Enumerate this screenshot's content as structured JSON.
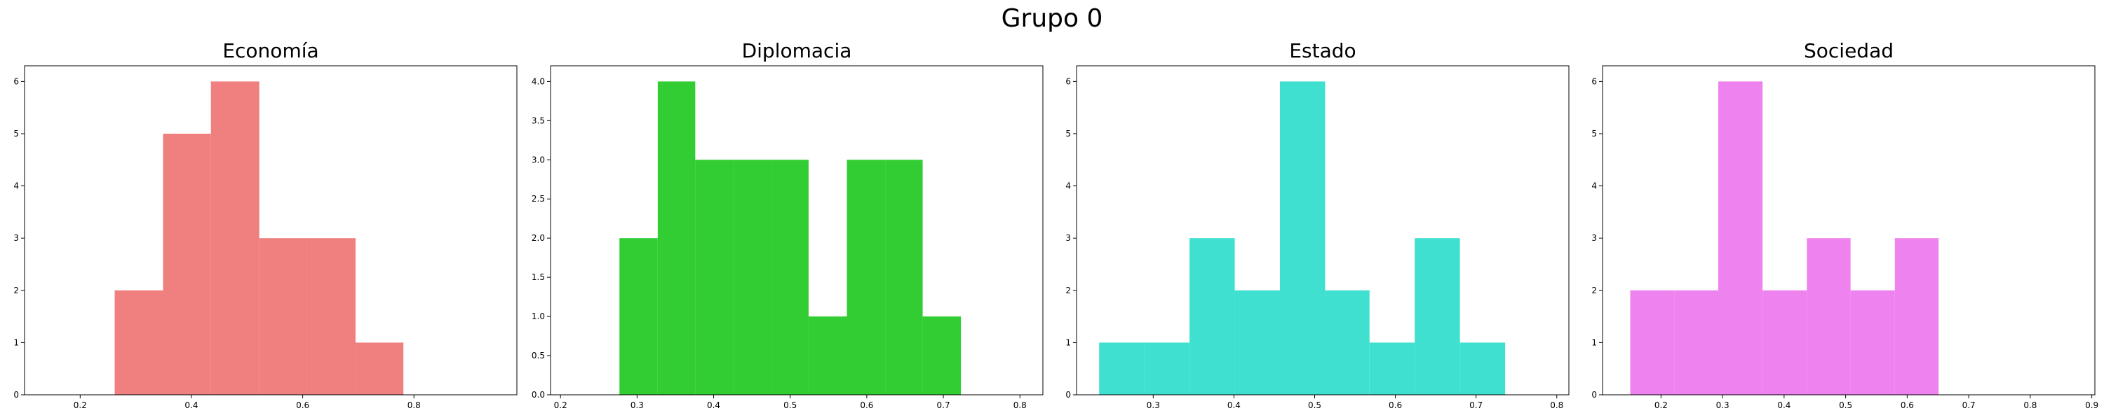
{
  "figure": {
    "title": "Grupo 0"
  },
  "chart_data": [
    {
      "type": "bar",
      "title": "Economía",
      "color": "#f08080",
      "xlim": [
        0.1,
        0.985
      ],
      "ylim": [
        0,
        6.3
      ],
      "xticks": [
        "0.2",
        "0.4",
        "0.6",
        "0.8"
      ],
      "xtick_values": [
        0.2,
        0.4,
        0.6,
        0.8
      ],
      "yticks": [
        "0",
        "1",
        "2",
        "3",
        "4",
        "5",
        "6"
      ],
      "ytick_values": [
        0,
        1,
        2,
        3,
        4,
        5,
        6
      ],
      "bins": [
        {
          "x0": 0.262,
          "x1": 0.349,
          "value": 2
        },
        {
          "x0": 0.349,
          "x1": 0.435,
          "value": 5
        },
        {
          "x0": 0.435,
          "x1": 0.522,
          "value": 6
        },
        {
          "x0": 0.522,
          "x1": 0.608,
          "value": 3
        },
        {
          "x0": 0.608,
          "x1": 0.695,
          "value": 3
        },
        {
          "x0": 0.695,
          "x1": 0.781,
          "value": 1
        }
      ]
    },
    {
      "type": "bar",
      "title": "Diplomacia",
      "color": "#32cd32",
      "xlim": [
        0.187,
        0.83
      ],
      "ylim": [
        0,
        4.2
      ],
      "xticks": [
        "0.2",
        "0.3",
        "0.4",
        "0.5",
        "0.6",
        "0.7",
        "0.8"
      ],
      "xtick_values": [
        0.2,
        0.3,
        0.4,
        0.5,
        0.6,
        0.7,
        0.8
      ],
      "yticks": [
        "0.0",
        "0.5",
        "1.0",
        "1.5",
        "2.0",
        "2.5",
        "3.0",
        "3.5",
        "4.0"
      ],
      "ytick_values": [
        0,
        0.5,
        1,
        1.5,
        2,
        2.5,
        3,
        3.5,
        4
      ],
      "bins": [
        {
          "x0": 0.277,
          "x1": 0.327,
          "value": 2
        },
        {
          "x0": 0.327,
          "x1": 0.376,
          "value": 4
        },
        {
          "x0": 0.376,
          "x1": 0.426,
          "value": 3
        },
        {
          "x0": 0.426,
          "x1": 0.475,
          "value": 3
        },
        {
          "x0": 0.475,
          "x1": 0.524,
          "value": 3
        },
        {
          "x0": 0.524,
          "x1": 0.574,
          "value": 1
        },
        {
          "x0": 0.574,
          "x1": 0.624,
          "value": 3
        },
        {
          "x0": 0.624,
          "x1": 0.673,
          "value": 3
        },
        {
          "x0": 0.673,
          "x1": 0.723,
          "value": 1
        }
      ]
    },
    {
      "type": "bar",
      "title": "Estado",
      "color": "#40e0d0",
      "xlim": [
        0.205,
        0.815
      ],
      "ylim": [
        0,
        6.3
      ],
      "xticks": [
        "0.3",
        "0.4",
        "0.5",
        "0.6",
        "0.7",
        "0.8"
      ],
      "xtick_values": [
        0.3,
        0.4,
        0.5,
        0.6,
        0.7,
        0.8
      ],
      "yticks": [
        "0",
        "1",
        "2",
        "3",
        "4",
        "5",
        "6"
      ],
      "ytick_values": [
        0,
        1,
        2,
        3,
        4,
        5,
        6
      ],
      "bins": [
        {
          "x0": 0.233,
          "x1": 0.289,
          "value": 1
        },
        {
          "x0": 0.289,
          "x1": 0.345,
          "value": 1
        },
        {
          "x0": 0.345,
          "x1": 0.401,
          "value": 3
        },
        {
          "x0": 0.401,
          "x1": 0.457,
          "value": 2
        },
        {
          "x0": 0.457,
          "x1": 0.513,
          "value": 6
        },
        {
          "x0": 0.513,
          "x1": 0.568,
          "value": 2
        },
        {
          "x0": 0.568,
          "x1": 0.624,
          "value": 1
        },
        {
          "x0": 0.624,
          "x1": 0.68,
          "value": 3
        },
        {
          "x0": 0.68,
          "x1": 0.736,
          "value": 1
        }
      ]
    },
    {
      "type": "bar",
      "title": "Sociedad",
      "color": "#ee82ee",
      "xlim": [
        0.105,
        0.905
      ],
      "ylim": [
        0,
        6.3
      ],
      "xticks": [
        "0.2",
        "0.3",
        "0.4",
        "0.5",
        "0.6",
        "0.7",
        "0.8",
        "0.9"
      ],
      "xtick_values": [
        0.2,
        0.3,
        0.4,
        0.5,
        0.6,
        0.7,
        0.8,
        0.9
      ],
      "yticks": [
        "0",
        "1",
        "2",
        "3",
        "4",
        "5",
        "6"
      ],
      "ytick_values": [
        0,
        1,
        2,
        3,
        4,
        5,
        6
      ],
      "bins": [
        {
          "x0": 0.15,
          "x1": 0.222,
          "value": 2
        },
        {
          "x0": 0.222,
          "x1": 0.293,
          "value": 2
        },
        {
          "x0": 0.293,
          "x1": 0.365,
          "value": 6
        },
        {
          "x0": 0.365,
          "x1": 0.437,
          "value": 2
        },
        {
          "x0": 0.437,
          "x1": 0.508,
          "value": 3
        },
        {
          "x0": 0.508,
          "x1": 0.58,
          "value": 2
        },
        {
          "x0": 0.58,
          "x1": 0.651,
          "value": 3
        }
      ]
    }
  ]
}
